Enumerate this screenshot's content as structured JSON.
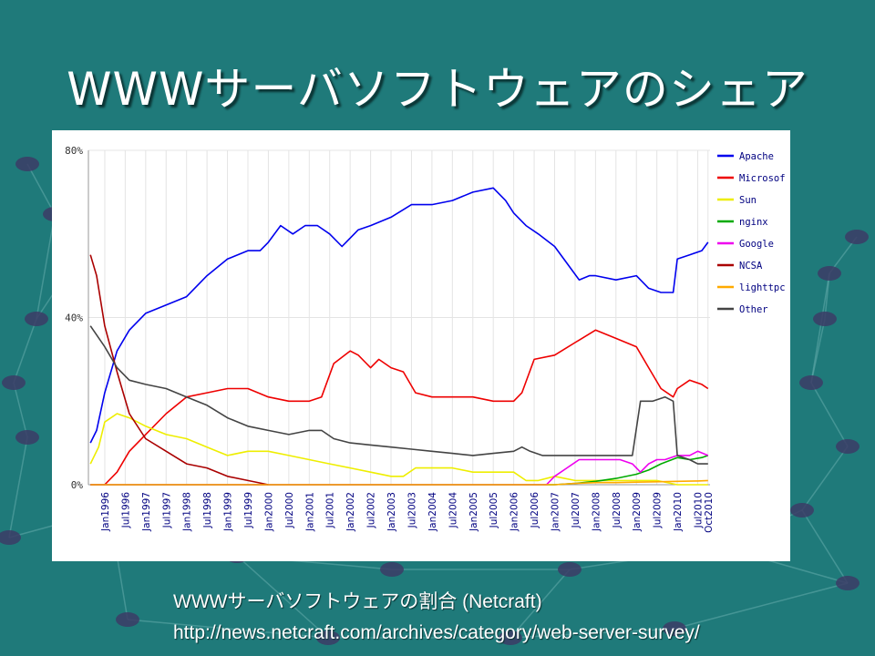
{
  "slide": {
    "title": "WWWサーバソフトウェアのシェア",
    "caption": "WWWサーバソフトウェアの割合 (Netcraft)",
    "url": "http://news.netcraft.com/archives/category/web-server-survey/"
  },
  "colors": {
    "background": "#1f7a7a",
    "Apache": "#0000ee",
    "Microsoft": "#ee0000",
    "Sun": "#eeee00",
    "nginx": "#00aa00",
    "Google": "#ee00ee",
    "NCSA": "#aa0000",
    "lighttpd": "#ffaa00",
    "Other": "#444444"
  },
  "chart_data": {
    "type": "line",
    "title": "",
    "xlabel": "",
    "ylabel": "",
    "ylim": [
      0,
      80
    ],
    "yticks": [
      "0%",
      "40%",
      "80%"
    ],
    "ytick_values": [
      0,
      40,
      80
    ],
    "xlim": [
      1995.6,
      2010.8
    ],
    "xtick_labels": [
      "Jan1996",
      "Jul1996",
      "Jan1997",
      "Jul1997",
      "Jan1998",
      "Jul1998",
      "Jan1999",
      "Jul1999",
      "Jan2000",
      "Jul2000",
      "Jan2001",
      "Jul2001",
      "Jan2002",
      "Jul2002",
      "Jan2003",
      "Jul2003",
      "Jan2004",
      "Jul2004",
      "Jan2005",
      "Jul2005",
      "Jan2006",
      "Jul2006",
      "Jan2007",
      "Jul2007",
      "Jan2008",
      "Jul2008",
      "Jan2009",
      "Jul2009",
      "Jan2010",
      "Jul2010",
      "Oct2010"
    ],
    "xtick_values": [
      1996,
      1996.5,
      1997,
      1997.5,
      1998,
      1998.5,
      1999,
      1999.5,
      2000,
      2000.5,
      2001,
      2001.5,
      2002,
      2002.5,
      2003,
      2003.5,
      2004,
      2004.5,
      2005,
      2005.5,
      2006,
      2006.5,
      2007,
      2007.5,
      2008,
      2008.5,
      2009,
      2009.5,
      2010,
      2010.5,
      2010.75
    ],
    "legend": [
      "Apache",
      "Microsoft",
      "Sun",
      "nginx",
      "Google",
      "NCSA",
      "lighttpd",
      "Other"
    ],
    "legend_labels": [
      "Apache",
      "Microsof",
      "Sun",
      "nginx",
      "Google",
      "NCSA",
      "lighttpc",
      "Other"
    ],
    "legend_position": "right",
    "series": [
      {
        "name": "Apache",
        "x": [
          1995.65,
          1995.8,
          1996,
          1996.3,
          1996.6,
          1997,
          1997.5,
          1998,
          1998.5,
          1999,
          1999.5,
          1999.8,
          2000,
          2000.3,
          2000.6,
          2000.9,
          2001.2,
          2001.5,
          2001.8,
          2002,
          2002.2,
          2002.5,
          2003,
          2003.5,
          2004,
          2004.5,
          2005,
          2005.5,
          2005.8,
          2006,
          2006.3,
          2006.6,
          2007,
          2007.3,
          2007.6,
          2007.85,
          2008,
          2008.5,
          2009,
          2009.3,
          2009.6,
          2009.9,
          2010,
          2010.3,
          2010.6,
          2010.75
        ],
        "values": [
          10,
          13,
          22,
          32,
          37,
          41,
          43,
          45,
          50,
          54,
          56,
          56,
          58,
          62,
          60,
          62,
          62,
          60,
          57,
          59,
          61,
          62,
          64,
          67,
          67,
          68,
          70,
          71,
          68,
          65,
          62,
          60,
          57,
          53,
          49,
          50,
          50,
          49,
          50,
          47,
          46,
          46,
          54,
          55,
          56,
          58
        ]
      },
      {
        "name": "Microsoft",
        "x": [
          1995.65,
          1996,
          1996.3,
          1996.6,
          1997,
          1997.5,
          1998,
          1998.5,
          1999,
          1999.5,
          2000,
          2000.5,
          2001,
          2001.3,
          2001.6,
          2002,
          2002.2,
          2002.4,
          2002.5,
          2002.7,
          2003,
          2003.3,
          2003.6,
          2004,
          2004.5,
          2005,
          2005.5,
          2006,
          2006.2,
          2006.5,
          2007,
          2007.5,
          2008,
          2008.5,
          2009,
          2009.3,
          2009.6,
          2009.9,
          2010,
          2010.3,
          2010.6,
          2010.75
        ],
        "values": [
          0,
          0,
          3,
          8,
          12,
          17,
          21,
          22,
          23,
          23,
          21,
          20,
          20,
          21,
          29,
          32,
          31,
          29,
          28,
          30,
          28,
          27,
          22,
          21,
          21,
          21,
          20,
          20,
          22,
          30,
          31,
          34,
          37,
          35,
          33,
          28,
          23,
          21,
          23,
          25,
          24,
          23
        ]
      },
      {
        "name": "Sun",
        "x": [
          1995.65,
          1995.85,
          1996,
          1996.3,
          1996.6,
          1997,
          1997.5,
          1998,
          1998.5,
          1999,
          1999.5,
          2000,
          2000.5,
          2001,
          2001.5,
          2002,
          2002.5,
          2003,
          2003.3,
          2003.6,
          2004,
          2004.5,
          2005,
          2005.5,
          2006,
          2006.3,
          2006.6,
          2007,
          2007.5,
          2008,
          2008.5,
          2009,
          2009.5,
          2010,
          2010.5,
          2010.75
        ],
        "values": [
          5,
          9,
          15,
          17,
          16,
          14,
          12,
          11,
          9,
          7,
          8,
          8,
          7,
          6,
          5,
          4,
          3,
          2,
          2,
          4,
          4,
          4,
          3,
          3,
          3,
          1,
          1,
          2,
          1,
          1,
          1,
          1,
          1,
          0,
          0,
          0
        ]
      },
      {
        "name": "nginx",
        "x": [
          1995.65,
          2007,
          2007.5,
          2008,
          2008.5,
          2009,
          2009.3,
          2009.6,
          2010,
          2010.3,
          2010.6,
          2010.75
        ],
        "values": [
          0,
          0,
          0.3,
          0.8,
          1.5,
          2.5,
          3.5,
          5,
          6.5,
          6,
          6.5,
          7
        ]
      },
      {
        "name": "Google",
        "x": [
          1995.65,
          2006.8,
          2007,
          2007.3,
          2007.6,
          2008,
          2008.3,
          2008.6,
          2008.9,
          2009.1,
          2009.3,
          2009.5,
          2009.7,
          2010,
          2010.3,
          2010.5,
          2010.75
        ],
        "values": [
          0,
          0,
          2,
          4,
          6,
          6,
          6,
          6,
          5,
          3,
          5,
          6,
          6,
          7,
          7,
          8,
          7
        ]
      },
      {
        "name": "NCSA",
        "x": [
          1995.65,
          1995.8,
          1996,
          1996.3,
          1996.6,
          1997,
          1997.5,
          1998,
          1998.5,
          1999,
          1999.5,
          2000
        ],
        "values": [
          55,
          50,
          38,
          27,
          17,
          11,
          8,
          5,
          4,
          2,
          1,
          0
        ]
      },
      {
        "name": "lighttpd",
        "x": [
          1995.65,
          2007,
          2007.5,
          2008,
          2008.5,
          2009,
          2009.5,
          2010,
          2010.5,
          2010.75
        ],
        "values": [
          0,
          0,
          0.3,
          0.5,
          0.5,
          0.6,
          0.7,
          0.8,
          0.9,
          1
        ]
      },
      {
        "name": "Other",
        "x": [
          1995.65,
          1996,
          1996.3,
          1996.6,
          1997,
          1997.5,
          1998,
          1998.5,
          1999,
          1999.5,
          2000,
          2000.5,
          2001,
          2001.3,
          2001.6,
          2002,
          2002.5,
          2003,
          2003.5,
          2004,
          2004.5,
          2005,
          2005.5,
          2006,
          2006.2,
          2006.4,
          2006.7,
          2007,
          2007.5,
          2008,
          2008.5,
          2008.9,
          2009.1,
          2009.4,
          2009.7,
          2009.9,
          2010,
          2010.3,
          2010.5,
          2010.75
        ],
        "values": [
          38,
          33,
          28,
          25,
          24,
          23,
          21,
          19,
          16,
          14,
          13,
          12,
          13,
          13,
          11,
          10,
          9.5,
          9,
          8.5,
          8,
          7.5,
          7,
          7.5,
          8,
          9,
          8,
          7,
          7,
          7,
          7,
          7,
          7,
          20,
          20,
          21,
          20,
          7,
          6,
          5,
          5
        ]
      }
    ]
  }
}
